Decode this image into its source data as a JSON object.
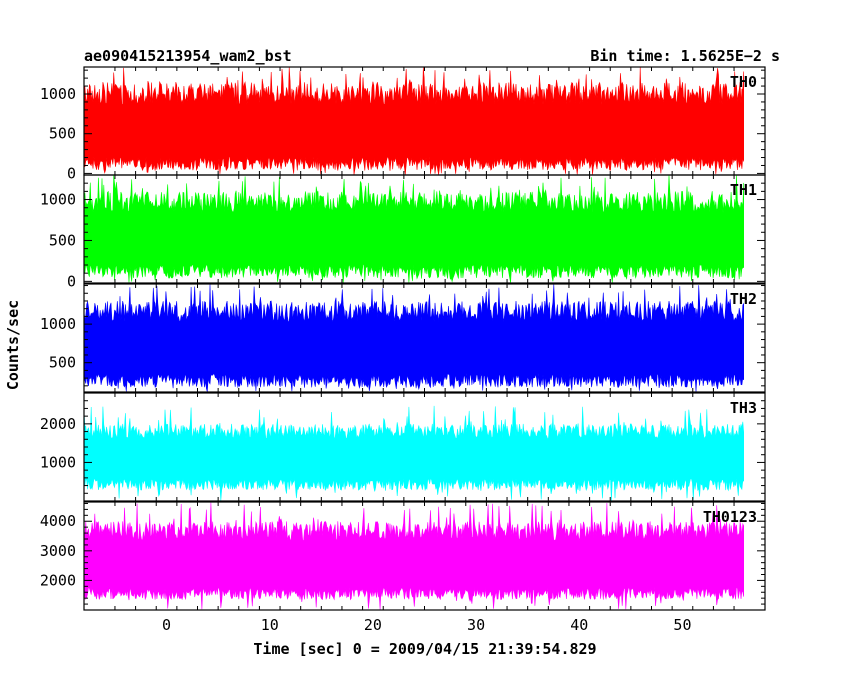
{
  "chart_data": {
    "type": "line",
    "title_left": "ae090415213954_wam2_bst",
    "title_right": "Bin time: 1.5625E−2 s",
    "xlabel": "Time [sec] 0 = 2009/04/15 21:39:54.829",
    "ylabel": "Counts/sec",
    "xlim": [
      -8,
      58
    ],
    "x_ticks": [
      0,
      10,
      20,
      30,
      40,
      50
    ],
    "x_data_range": [
      -8,
      56
    ],
    "grid": false,
    "panels": [
      {
        "name": "TH0",
        "color": "#ff0000",
        "ylim": [
          -20,
          1340
        ],
        "y_ticks": [
          0,
          500,
          1000
        ],
        "y_tick_labels": [
          "0",
          "500",
          "1000"
        ],
        "typical_low": 40,
        "typical_high": 1150,
        "peak_max": 1340,
        "mean": 520
      },
      {
        "name": "TH1",
        "color": "#00ff00",
        "ylim": [
          -20,
          1300
        ],
        "y_ticks": [
          0,
          500,
          1000
        ],
        "y_tick_labels": [
          "0",
          "500",
          "1000"
        ],
        "typical_low": 40,
        "typical_high": 1100,
        "peak_max": 1300,
        "mean": 520
      },
      {
        "name": "TH2",
        "color": "#0000ff",
        "ylim": [
          120,
          1520
        ],
        "y_ticks": [
          500,
          1000
        ],
        "y_tick_labels": [
          "500",
          "1000"
        ],
        "typical_low": 180,
        "typical_high": 1300,
        "peak_max": 1520,
        "mean": 700
      },
      {
        "name": "TH3",
        "color": "#00ffff",
        "ylim": [
          0,
          2800
        ],
        "y_ticks": [
          1000,
          2000
        ],
        "y_tick_labels": [
          "1000",
          "2000"
        ],
        "typical_low": 280,
        "typical_high": 2000,
        "peak_max": 2500,
        "mean": 1150
      },
      {
        "name": "TH0123",
        "color": "#ff00ff",
        "ylim": [
          1000,
          4650
        ],
        "y_ticks": [
          2000,
          3000,
          4000
        ],
        "y_tick_labels": [
          "2000",
          "3000",
          "4000"
        ],
        "typical_low": 1350,
        "typical_high": 4000,
        "peak_max": 4650,
        "mean": 2550
      }
    ]
  }
}
